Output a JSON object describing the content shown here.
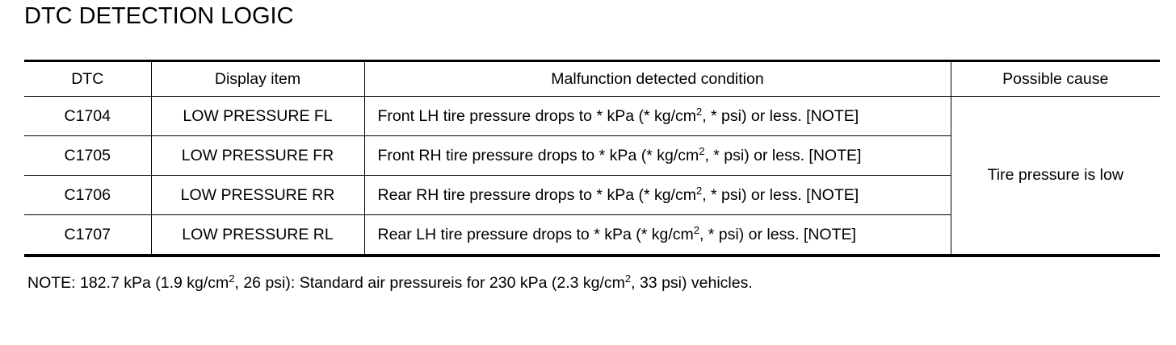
{
  "title": "DTC DETECTION LOGIC",
  "table": {
    "header": [
      "DTC",
      "Display item",
      "Malfunction detected condition",
      "Possible cause"
    ],
    "rows": [
      [
        "C1704",
        "LOW PRESSURE FL",
        [
          "Front LH tire pressure drops to * kPa (* kg/cm",
          "2",
          ", * psi) or less. [NOTE]"
        ]
      ],
      [
        "C1705",
        "LOW PRESSURE FR",
        [
          "Front RH tire pressure drops to * kPa (* kg/cm",
          "2",
          ", * psi) or less. [NOTE]"
        ]
      ],
      [
        "C1706",
        "LOW PRESSURE RR",
        [
          "Rear RH tire pressure drops to * kPa (* kg/cm",
          "2",
          ", * psi) or less. [NOTE]"
        ]
      ],
      [
        "C1707",
        "LOW PRESSURE RL",
        [
          "Rear LH tire pressure drops to * kPa (* kg/cm",
          "2",
          ", * psi) or less. [NOTE]"
        ]
      ]
    ],
    "possible_cause": "Tire pressure is low"
  },
  "note": [
    "NOTE: 182.7 kPa (1.9 kg/cm",
    "2",
    ", 26 psi): Standard air pressureis for 230 kPa (2.3 kg/cm",
    "2",
    ", 33 psi) vehicles."
  ]
}
